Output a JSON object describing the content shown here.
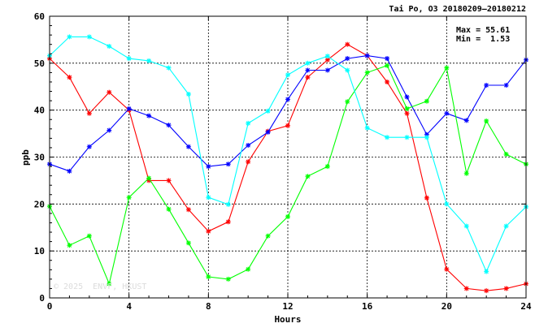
{
  "chart_data": {
    "type": "line",
    "title": "Tai Po, O3 20180209—20180212",
    "xlabel": "Hours",
    "ylabel": "ppb",
    "xlim": [
      0,
      24
    ],
    "ylim": [
      0,
      60
    ],
    "x_ticks": [
      0,
      4,
      8,
      12,
      16,
      20,
      24
    ],
    "y_ticks": [
      0,
      10,
      20,
      30,
      40,
      50,
      60
    ],
    "grid": true,
    "stats": {
      "max_label": "Max = 55.61",
      "min_label": "Min =  1.53"
    },
    "watermark": "© 2025  ENVF, HKUST",
    "x": [
      0,
      1,
      2,
      3,
      4,
      5,
      6,
      7,
      8,
      9,
      10,
      11,
      12,
      13,
      14,
      15,
      16,
      17,
      18,
      19,
      20,
      21,
      22,
      23,
      24
    ],
    "series": [
      {
        "color": "#ff0000",
        "values": [
          51,
          47,
          39.3,
          43.8,
          40,
          25,
          25,
          18.8,
          14.2,
          16.2,
          29,
          35.5,
          36.7,
          47,
          50.7,
          54,
          51.6,
          46,
          39.3,
          21.3,
          6.1,
          2,
          1.53,
          2,
          3
        ]
      },
      {
        "color": "#0000ff",
        "values": [
          28.5,
          27,
          32.2,
          35.7,
          40.3,
          38.8,
          36.8,
          32.2,
          28,
          28.5,
          32.5,
          35.3,
          42.3,
          48.5,
          48.5,
          51,
          51.6,
          51,
          42.8,
          34.8,
          39.3,
          37.8,
          45.3,
          45.3,
          50.7
        ]
      },
      {
        "color": "#00ff00",
        "values": [
          19.5,
          11.2,
          13.2,
          3,
          21.4,
          25.5,
          18.9,
          11.7,
          4.5,
          4,
          6.1,
          13.2,
          17.3,
          25.9,
          28,
          41.8,
          48,
          49.5,
          40.3,
          41.9,
          49,
          26.5,
          37.7,
          30.6,
          28.5
        ]
      },
      {
        "color": "#00ffff",
        "values": [
          51.6,
          55.61,
          55.61,
          53.6,
          51,
          50.5,
          49,
          43.4,
          21.4,
          19.9,
          37.2,
          39.8,
          47.5,
          50,
          51.5,
          48.5,
          36.2,
          34.2,
          34.2,
          34.2,
          20,
          15.3,
          5.6,
          15.3,
          19.4
        ]
      }
    ]
  }
}
